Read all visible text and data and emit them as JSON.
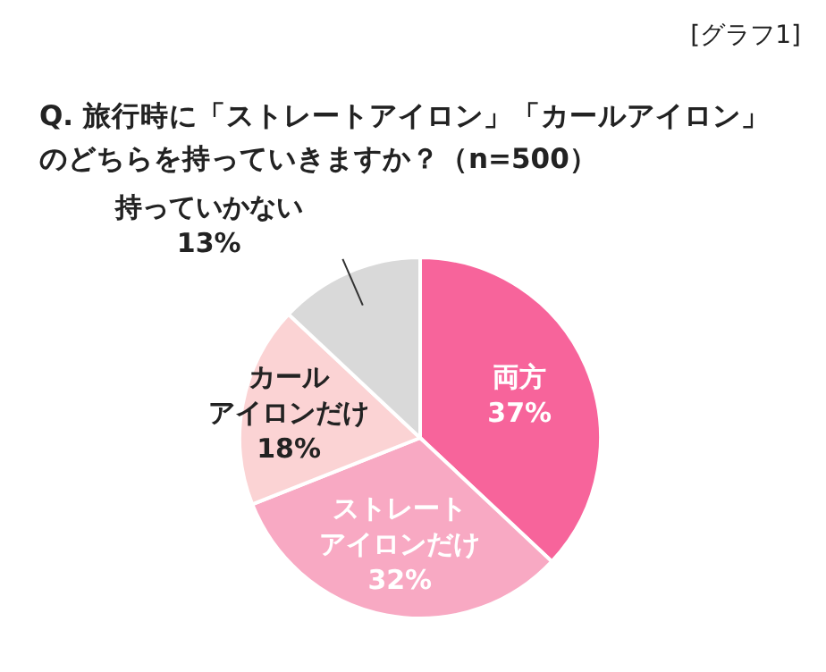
{
  "chart_data": {
    "type": "pie",
    "title": "Q. 旅行時に「ストレートアイロン」「カールアイロン」のどちらを持っていきますか？（n=500）",
    "annotations": [
      "[グラフ1]"
    ],
    "categories": [
      "両方",
      "ストレートアイロンだけ",
      "カールアイロンだけ",
      "持っていかない"
    ],
    "values": [
      37,
      32,
      18,
      13
    ],
    "value_labels": [
      "37%",
      "32%",
      "18%",
      "13%"
    ],
    "colors": [
      "#f7649b",
      "#f8a9c3",
      "#fbd3d4",
      "#d9d9d9"
    ],
    "legend": false
  }
}
